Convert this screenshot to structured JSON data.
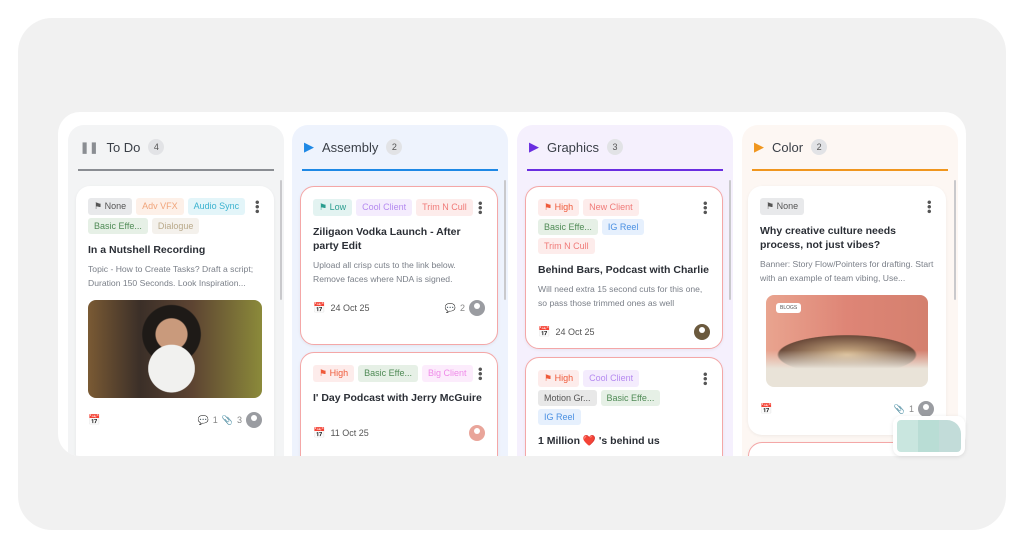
{
  "columns": [
    {
      "name": "To Do",
      "count": "4",
      "icon": "pause-icon",
      "color": "#8a8d92",
      "cards": [
        {
          "tags": [
            {
              "label": "None",
              "kind": "priority",
              "icon": "flag-icon",
              "bg": "#e8e9eb",
              "fg": "#555"
            },
            {
              "label": "Adv VFX",
              "bg": "#fdf0e8",
              "fg": "#f0a47a"
            },
            {
              "label": "Audio Sync",
              "bg": "#e3f5f9",
              "fg": "#3bb2cf"
            },
            {
              "label": "Basic Effe...",
              "bg": "#e6f0e6",
              "fg": "#4f8a55"
            },
            {
              "label": "Dialogue",
              "bg": "#f4f1ec",
              "fg": "#b9a98a"
            }
          ],
          "title": "In a Nutshell Recording",
          "desc": "Topic - How to Create Tasks? Draft a script; Duration 150 Seconds. Look Inspiration...",
          "date": "",
          "comments": "1",
          "attachments": "3"
        }
      ]
    },
    {
      "name": "Assembly",
      "count": "2",
      "icon": "play-icon",
      "color": "#1e88e5",
      "cards": [
        {
          "tags": [
            {
              "label": "Low",
              "icon": "flag-icon",
              "bg": "#e3f3f1",
              "fg": "#2a9d8f"
            },
            {
              "label": "Cool Client",
              "bg": "#f4ecfd",
              "fg": "#b58af0"
            },
            {
              "label": "Trim N Cull",
              "bg": "#fdeceb",
              "fg": "#f07a78"
            }
          ],
          "title": "Ziligaon Vodka Launch - After party Edit",
          "desc": "Upload all crisp cuts to the link below. Remove faces where NDA is signed.",
          "date": "24 Oct 25",
          "comments": "2"
        },
        {
          "tags": [
            {
              "label": "High",
              "icon": "flag-icon",
              "bg": "#fdeceb",
              "fg": "#ef5a3a"
            },
            {
              "label": "Basic Effe...",
              "bg": "#e6f0e6",
              "fg": "#4f8a55"
            },
            {
              "label": "Big Client",
              "bg": "#fcecfc",
              "fg": "#ef8ae8"
            }
          ],
          "title": "I' Day Podcast with Jerry McGuire",
          "date": "11 Oct 25"
        }
      ]
    },
    {
      "name": "Graphics",
      "count": "3",
      "icon": "play-icon",
      "color": "#6a2ee0",
      "cards": [
        {
          "tags": [
            {
              "label": "High",
              "icon": "flag-icon",
              "bg": "#fdeceb",
              "fg": "#ef5a3a"
            },
            {
              "label": "New Client",
              "bg": "#fdeceb",
              "fg": "#f07a78"
            },
            {
              "label": "Basic Effe...",
              "bg": "#e6f0e6",
              "fg": "#4f8a55"
            },
            {
              "label": "IG Reel",
              "bg": "#e6f0fd",
              "fg": "#4a90e2"
            },
            {
              "label": "Trim N Cull",
              "bg": "#fdeceb",
              "fg": "#f07a78"
            }
          ],
          "title": "Behind Bars, Podcast with Charlie",
          "desc": "Will need extra 15 second cuts for this one, so pass those trimmed ones as well",
          "date": "24 Oct 25"
        },
        {
          "tags": [
            {
              "label": "High",
              "icon": "flag-icon",
              "bg": "#fdeceb",
              "fg": "#ef5a3a"
            },
            {
              "label": "Cool Client",
              "bg": "#f4ecfd",
              "fg": "#b58af0"
            },
            {
              "label": "Motion Gr...",
              "bg": "#e8e8e8",
              "fg": "#555"
            },
            {
              "label": "Basic Effe...",
              "bg": "#e6f0e6",
              "fg": "#4f8a55"
            },
            {
              "label": "IG Reel",
              "bg": "#e6f0fd",
              "fg": "#4a90e2"
            }
          ],
          "title_pre": "1 Million",
          "title_emoji": "❤️",
          "title_post": "'s behind us"
        }
      ]
    },
    {
      "name": "Color",
      "count": "2",
      "icon": "play-icon",
      "color": "#f0961e",
      "cards": [
        {
          "tags": [
            {
              "label": "None",
              "icon": "flag-icon",
              "bg": "#e8e9eb",
              "fg": "#555"
            }
          ],
          "title": "Why creative culture needs process, not just vibes?",
          "desc": "Banner: Story Flow/Pointers for drafting. Start with an example of team vibing, Use...",
          "image_badge": "BLOGS",
          "attachments": "1"
        }
      ]
    }
  ]
}
